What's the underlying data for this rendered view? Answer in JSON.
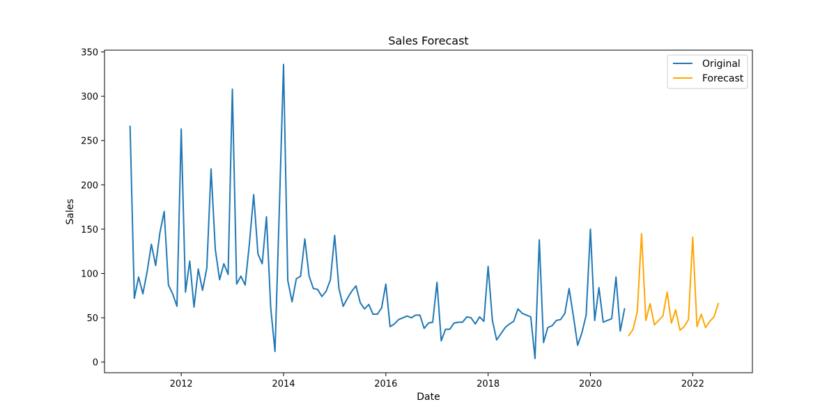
{
  "chart_data": {
    "type": "line",
    "title": "Sales Forecast",
    "xlabel": "Date",
    "ylabel": "Sales",
    "xlim": [
      "2010-07-01",
      "2023-03-01"
    ],
    "ylim": [
      -12,
      352
    ],
    "xticks": [
      "2012",
      "2014",
      "2016",
      "2018",
      "2020",
      "2022"
    ],
    "yticks": [
      "0",
      "50",
      "100",
      "150",
      "200",
      "250",
      "300",
      "350"
    ],
    "grid": false,
    "legend": {
      "position": "top-right",
      "entries": [
        "Original",
        "Forecast"
      ]
    },
    "series": [
      {
        "name": "Original",
        "color": "#1f77b4",
        "start": "2011-01",
        "values": [
          266,
          72,
          96,
          77,
          102,
          133,
          109,
          146,
          170,
          87,
          77,
          63,
          263,
          79,
          114,
          62,
          105,
          81,
          106,
          218,
          127,
          93,
          111,
          99,
          308,
          88,
          97,
          87,
          134,
          189,
          122,
          111,
          164,
          61,
          12,
          170,
          336,
          92,
          68,
          94,
          97,
          139,
          97,
          83,
          82,
          74,
          80,
          93,
          143,
          83,
          63,
          72,
          80,
          86,
          67,
          60,
          65,
          54,
          54,
          61,
          88,
          40,
          43,
          48,
          50,
          52,
          50,
          53,
          53,
          38,
          44,
          45,
          90,
          24,
          37,
          37,
          44,
          45,
          45,
          51,
          50,
          43,
          51,
          46,
          108,
          47,
          25,
          32,
          39,
          43,
          46,
          60,
          55,
          53,
          51,
          4,
          138,
          22,
          39,
          41,
          47,
          48,
          55,
          83,
          52,
          19,
          33,
          53,
          150,
          47,
          84,
          45,
          47,
          49,
          96,
          35,
          60
        ]
      },
      {
        "name": "Forecast",
        "color": "#ffa500",
        "start": "2020-10",
        "values": [
          30,
          37,
          57,
          145,
          47,
          66,
          42,
          47,
          52,
          79,
          44,
          59,
          36,
          40,
          48,
          141,
          40,
          54,
          39,
          46,
          51,
          66
        ]
      }
    ]
  }
}
